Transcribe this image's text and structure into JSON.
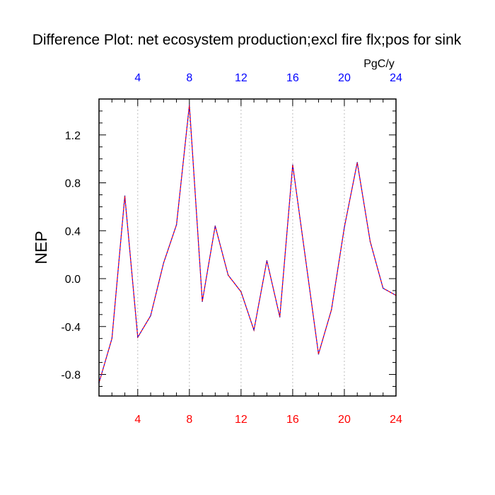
{
  "chart_data": {
    "type": "line",
    "title": "Difference Plot: net ecosystem production;excl fire flx;pos for sink",
    "ylabel": "NEP",
    "units": "PgC/y",
    "xlim": [
      1,
      24
    ],
    "ylim": [
      -0.98,
      1.5
    ],
    "grid": "vertical dashed at top ticks",
    "colors": {
      "axis": "#000000",
      "top_ticks": "#0000ff",
      "bottom_ticks": "#ff0000",
      "line_a": "#0000ff",
      "line_b": "#ff0000"
    },
    "x_ticks": [
      "4",
      "8",
      "12",
      "16",
      "20",
      "24"
    ],
    "x_tick_values": [
      4,
      8,
      12,
      16,
      20,
      24
    ],
    "y_ticks": [
      "1.2",
      "0.8",
      "0.4",
      "0.0",
      "-0.4",
      "-0.8"
    ],
    "y_tick_values": [
      1.2,
      0.8,
      0.4,
      0.0,
      -0.4,
      -0.8
    ],
    "x": [
      1,
      2,
      3,
      4,
      5,
      6,
      7,
      8,
      9,
      10,
      11,
      12,
      13,
      14,
      15,
      16,
      17,
      18,
      19,
      20,
      21,
      22,
      23,
      24
    ],
    "values": [
      -0.87,
      -0.5,
      0.69,
      -0.49,
      -0.31,
      0.13,
      0.45,
      1.45,
      -0.19,
      0.44,
      0.03,
      -0.11,
      -0.43,
      0.15,
      -0.32,
      0.95,
      0.16,
      -0.63,
      -0.26,
      0.43,
      0.97,
      0.31,
      -0.08,
      -0.14
    ]
  }
}
